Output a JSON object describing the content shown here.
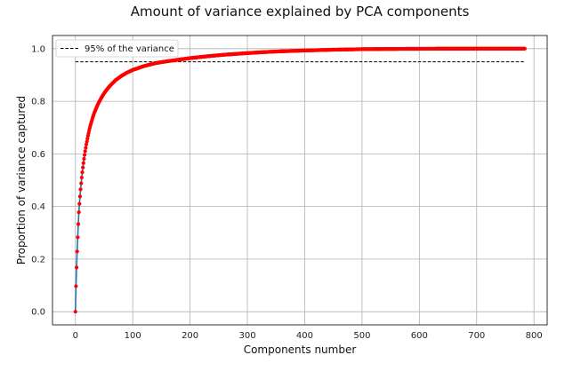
{
  "chart_data": {
    "type": "line",
    "title": "Amount of variance explained by PCA components",
    "xlabel": "Components number",
    "ylabel": "Proportion of variance captured",
    "xlim": [
      -40,
      823
    ],
    "ylim": [
      -0.05,
      1.05
    ],
    "xticks": [
      0,
      100,
      200,
      300,
      400,
      500,
      600,
      700,
      800
    ],
    "yticks": [
      0.0,
      0.2,
      0.4,
      0.6,
      0.8,
      1.0
    ],
    "grid": true,
    "legend": {
      "placement": "top-left",
      "entries": [
        "95% of the variance"
      ]
    },
    "threshold": {
      "name": "95% of the variance",
      "y": 0.95,
      "x_range": [
        0,
        784
      ],
      "style": "dashed",
      "color": "#000000"
    },
    "series": [
      {
        "line_color": "#1f77b4",
        "marker_color": "#ff0000",
        "x": [
          0,
          1,
          2,
          3,
          4,
          5,
          6,
          7,
          8,
          9,
          10,
          11,
          12,
          13,
          14,
          15,
          16,
          17,
          18,
          19,
          20,
          22,
          24,
          26,
          28,
          30,
          33,
          36,
          40,
          45,
          50,
          55,
          60,
          70,
          80,
          90,
          100,
          120,
          140,
          154,
          160,
          180,
          200,
          230,
          260,
          300,
          330,
          360,
          400,
          450,
          500,
          550,
          600,
          650,
          700,
          750,
          784
        ],
        "y": [
          0.0,
          0.097,
          0.168,
          0.229,
          0.283,
          0.333,
          0.378,
          0.41,
          0.438,
          0.465,
          0.488,
          0.51,
          0.53,
          0.548,
          0.565,
          0.581,
          0.596,
          0.61,
          0.623,
          0.636,
          0.647,
          0.669,
          0.689,
          0.707,
          0.722,
          0.737,
          0.756,
          0.772,
          0.792,
          0.812,
          0.83,
          0.845,
          0.858,
          0.88,
          0.896,
          0.909,
          0.919,
          0.934,
          0.945,
          0.95,
          0.952,
          0.958,
          0.964,
          0.971,
          0.977,
          0.983,
          0.987,
          0.99,
          0.993,
          0.996,
          0.998,
          0.999,
          0.9995,
          0.9998,
          1.0,
          1.0,
          1.0
        ]
      }
    ]
  }
}
